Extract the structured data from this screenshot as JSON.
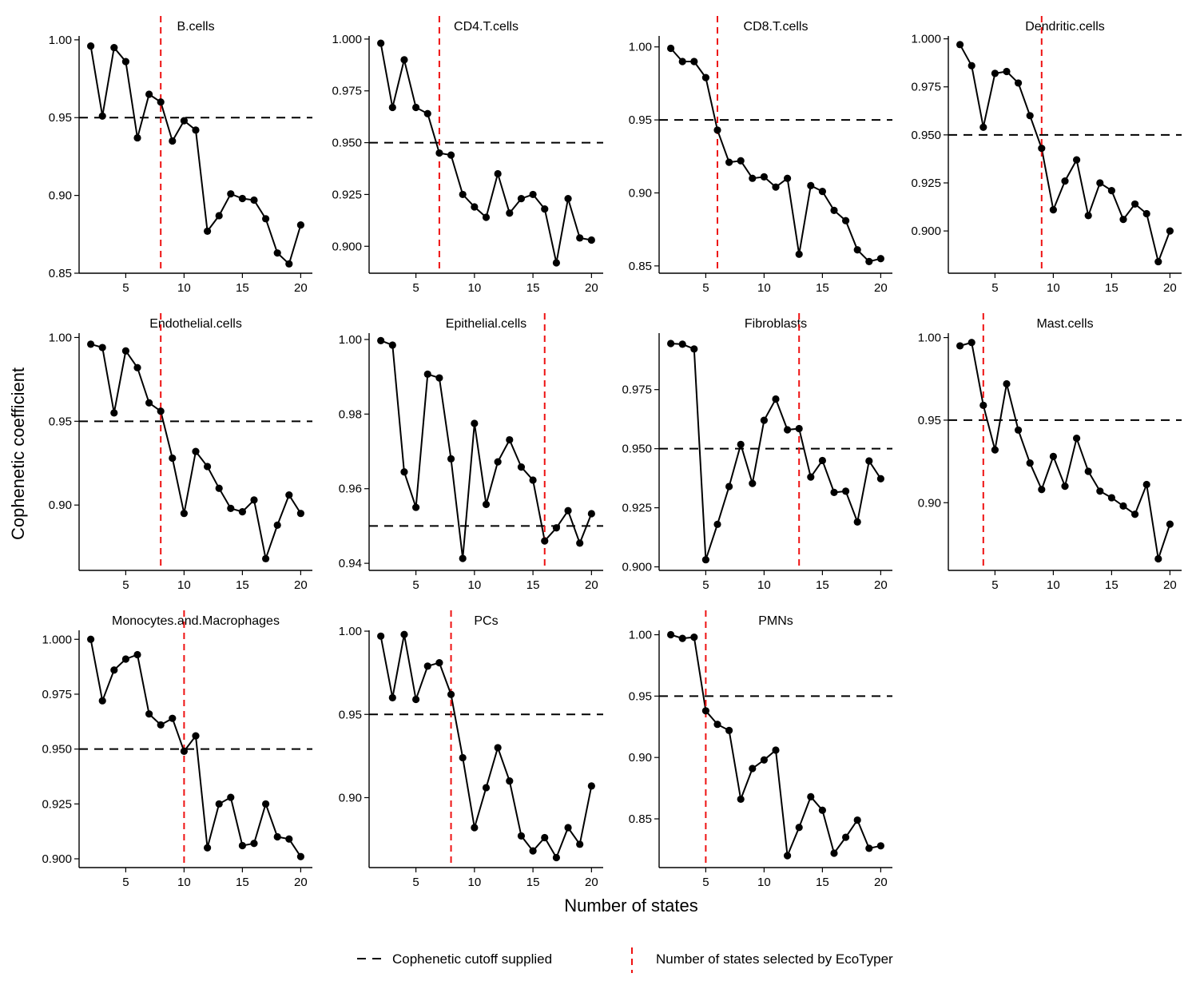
{
  "figure": {
    "ylabel": "Cophenetic coefficient",
    "xlabel": "Number of states",
    "legend": [
      {
        "label": "Cophenetic cutoff supplied",
        "style": "dashed-black-horizontal"
      },
      {
        "label": "Number of states selected by EcoTyper",
        "style": "dashed-red-vertical"
      }
    ],
    "colors": {
      "series": "#000000",
      "cutoff": "#000000",
      "selected": "#ee1111"
    }
  },
  "chart_data": [
    {
      "type": "line",
      "title": "B.cells",
      "x": [
        2,
        3,
        4,
        5,
        6,
        7,
        8,
        9,
        10,
        11,
        12,
        13,
        14,
        15,
        16,
        17,
        18,
        19,
        20
      ],
      "values": [
        0.996,
        0.951,
        0.995,
        0.986,
        0.937,
        0.965,
        0.96,
        0.935,
        0.948,
        0.942,
        0.877,
        0.887,
        0.901,
        0.898,
        0.897,
        0.885,
        0.863,
        0.856,
        0.881
      ],
      "xlim": [
        1,
        21
      ],
      "ylim": [
        0.85,
        1.0025
      ],
      "xticks": [
        5,
        10,
        15,
        20
      ],
      "yticks": [
        0.85,
        0.9,
        0.95,
        1.0
      ],
      "ytick_labels": [
        "0.85",
        "0.90",
        "0.95",
        "1.00"
      ],
      "cutoff": 0.95,
      "selected_states": 8
    },
    {
      "type": "line",
      "title": "CD4.T.cells",
      "x": [
        2,
        3,
        4,
        5,
        6,
        7,
        8,
        9,
        10,
        11,
        12,
        13,
        14,
        15,
        16,
        17,
        18,
        19,
        20
      ],
      "values": [
        0.998,
        0.967,
        0.99,
        0.967,
        0.964,
        0.945,
        0.944,
        0.925,
        0.919,
        0.914,
        0.935,
        0.916,
        0.923,
        0.925,
        0.918,
        0.892,
        0.923,
        0.904,
        0.903
      ],
      "xlim": [
        1,
        21
      ],
      "ylim": [
        0.887,
        1.0015
      ],
      "xticks": [
        5,
        10,
        15,
        20
      ],
      "yticks": [
        0.9,
        0.925,
        0.95,
        0.975,
        1.0
      ],
      "ytick_labels": [
        "0.900",
        "0.925",
        "0.950",
        "0.975",
        "1.000"
      ],
      "cutoff": 0.95,
      "selected_states": 7
    },
    {
      "type": "line",
      "title": "CD8.T.cells",
      "x": [
        2,
        3,
        4,
        5,
        6,
        7,
        8,
        9,
        10,
        11,
        12,
        13,
        14,
        15,
        16,
        17,
        18,
        19,
        20
      ],
      "values": [
        0.999,
        0.99,
        0.99,
        0.979,
        0.943,
        0.921,
        0.922,
        0.91,
        0.911,
        0.904,
        0.91,
        0.858,
        0.905,
        0.901,
        0.888,
        0.881,
        0.861,
        0.853,
        0.855
      ],
      "xlim": [
        1,
        21
      ],
      "ylim": [
        0.845,
        1.0075
      ],
      "xticks": [
        5,
        10,
        15,
        20
      ],
      "yticks": [
        0.85,
        0.9,
        0.95,
        1.0
      ],
      "ytick_labels": [
        "0.85",
        "0.90",
        "0.95",
        "1.00"
      ],
      "cutoff": 0.95,
      "selected_states": 6
    },
    {
      "type": "line",
      "title": "Dendritic.cells",
      "x": [
        2,
        3,
        4,
        5,
        6,
        7,
        8,
        9,
        10,
        11,
        12,
        13,
        14,
        15,
        16,
        17,
        18,
        19,
        20
      ],
      "values": [
        0.997,
        0.986,
        0.954,
        0.982,
        0.983,
        0.977,
        0.96,
        0.943,
        0.911,
        0.926,
        0.937,
        0.908,
        0.925,
        0.921,
        0.906,
        0.914,
        0.909,
        0.884,
        0.9
      ],
      "xlim": [
        1,
        21
      ],
      "ylim": [
        0.878,
        1.0015
      ],
      "xticks": [
        5,
        10,
        15,
        20
      ],
      "yticks": [
        0.9,
        0.925,
        0.95,
        0.975,
        1.0
      ],
      "ytick_labels": [
        "0.900",
        "0.925",
        "0.950",
        "0.975",
        "1.000"
      ],
      "cutoff": 0.95,
      "selected_states": 9
    },
    {
      "type": "line",
      "title": "Endothelial.cells",
      "x": [
        2,
        3,
        4,
        5,
        6,
        7,
        8,
        9,
        10,
        11,
        12,
        13,
        14,
        15,
        16,
        17,
        18,
        19,
        20
      ],
      "values": [
        0.996,
        0.994,
        0.955,
        0.992,
        0.982,
        0.961,
        0.956,
        0.928,
        0.895,
        0.932,
        0.923,
        0.91,
        0.898,
        0.896,
        0.903,
        0.868,
        0.888,
        0.906,
        0.895
      ],
      "xlim": [
        1,
        21
      ],
      "ylim": [
        0.861,
        1.0026
      ],
      "xticks": [
        5,
        10,
        15,
        20
      ],
      "yticks": [
        0.9,
        0.95,
        1.0
      ],
      "ytick_labels": [
        "0.90",
        "0.95",
        "1.00"
      ],
      "cutoff": 0.95,
      "selected_states": 8
    },
    {
      "type": "line",
      "title": "Epithelial.cells",
      "x": [
        2,
        3,
        4,
        5,
        6,
        7,
        8,
        9,
        10,
        11,
        12,
        13,
        14,
        15,
        16,
        17,
        18,
        19,
        20
      ],
      "values": [
        0.9997,
        0.9985,
        0.9645,
        0.955,
        0.9907,
        0.9897,
        0.968,
        0.9413,
        0.9775,
        0.9558,
        0.9672,
        0.9731,
        0.9658,
        0.9623,
        0.946,
        0.9495,
        0.9541,
        0.9454,
        0.9533
      ],
      "xlim": [
        1,
        21
      ],
      "ylim": [
        0.9381,
        1.0017
      ],
      "xticks": [
        5,
        10,
        15,
        20
      ],
      "yticks": [
        0.94,
        0.96,
        0.98,
        1.0
      ],
      "ytick_labels": [
        "0.94",
        "0.96",
        "0.98",
        "1.00"
      ],
      "cutoff": 0.95,
      "selected_states": 16
    },
    {
      "type": "line",
      "title": "Fibroblasts",
      "x": [
        2,
        3,
        4,
        5,
        6,
        7,
        8,
        9,
        10,
        11,
        12,
        13,
        14,
        15,
        16,
        17,
        18,
        19,
        20
      ],
      "values": [
        0.9945,
        0.9942,
        0.9922,
        0.903,
        0.918,
        0.934,
        0.9518,
        0.9353,
        0.962,
        0.971,
        0.958,
        0.9585,
        0.938,
        0.945,
        0.9315,
        0.932,
        0.919,
        0.9448,
        0.9373
      ],
      "xlim": [
        1,
        21
      ],
      "ylim": [
        0.8985,
        0.9989
      ],
      "xticks": [
        5,
        10,
        15,
        20
      ],
      "yticks": [
        0.9,
        0.925,
        0.95,
        0.975
      ],
      "ytick_labels": [
        "0.900",
        "0.925",
        "0.950",
        "0.975"
      ],
      "cutoff": 0.95,
      "selected_states": 13
    },
    {
      "type": "line",
      "title": "Mast.cells",
      "x": [
        2,
        3,
        4,
        5,
        6,
        7,
        8,
        9,
        10,
        11,
        12,
        13,
        14,
        15,
        16,
        17,
        18,
        19,
        20
      ],
      "values": [
        0.995,
        0.997,
        0.959,
        0.932,
        0.972,
        0.944,
        0.924,
        0.908,
        0.928,
        0.91,
        0.939,
        0.919,
        0.907,
        0.903,
        0.898,
        0.893,
        0.911,
        0.866,
        0.887
      ],
      "xlim": [
        1,
        21
      ],
      "ylim": [
        0.859,
        1.0027
      ],
      "xticks": [
        5,
        10,
        15,
        20
      ],
      "yticks": [
        0.9,
        0.95,
        1.0
      ],
      "ytick_labels": [
        "0.90",
        "0.95",
        "1.00"
      ],
      "cutoff": 0.95,
      "selected_states": 4
    },
    {
      "type": "line",
      "title": "Monocytes.and.Macrophages",
      "x": [
        2,
        3,
        4,
        5,
        6,
        7,
        8,
        9,
        10,
        11,
        12,
        13,
        14,
        15,
        16,
        17,
        18,
        19,
        20
      ],
      "values": [
        1.0,
        0.972,
        0.986,
        0.991,
        0.993,
        0.966,
        0.961,
        0.964,
        0.949,
        0.956,
        0.905,
        0.925,
        0.928,
        0.906,
        0.907,
        0.925,
        0.91,
        0.909,
        0.901
      ],
      "xlim": [
        1,
        21
      ],
      "ylim": [
        0.896,
        1.0041
      ],
      "xticks": [
        5,
        10,
        15,
        20
      ],
      "yticks": [
        0.9,
        0.925,
        0.95,
        0.975,
        1.0
      ],
      "ytick_labels": [
        "0.900",
        "0.925",
        "0.950",
        "0.975",
        "1.000"
      ],
      "cutoff": 0.95,
      "selected_states": 10
    },
    {
      "type": "line",
      "title": "PCs",
      "x": [
        2,
        3,
        4,
        5,
        6,
        7,
        8,
        9,
        10,
        11,
        12,
        13,
        14,
        15,
        16,
        17,
        18,
        19,
        20
      ],
      "values": [
        0.997,
        0.96,
        0.998,
        0.959,
        0.979,
        0.981,
        0.962,
        0.924,
        0.882,
        0.906,
        0.93,
        0.91,
        0.877,
        0.868,
        0.876,
        0.864,
        0.882,
        0.872,
        0.907
      ],
      "xlim": [
        1,
        21
      ],
      "ylim": [
        0.858,
        1.0005
      ],
      "xticks": [
        5,
        10,
        15,
        20
      ],
      "yticks": [
        0.9,
        0.95,
        1.0
      ],
      "ytick_labels": [
        "0.90",
        "0.95",
        "1.00"
      ],
      "cutoff": 0.95,
      "selected_states": 8
    },
    {
      "type": "line",
      "title": "PMNs",
      "x": [
        2,
        3,
        4,
        5,
        6,
        7,
        8,
        9,
        10,
        11,
        12,
        13,
        14,
        15,
        16,
        17,
        18,
        19,
        20
      ],
      "values": [
        1.0,
        0.997,
        0.998,
        0.938,
        0.927,
        0.922,
        0.866,
        0.891,
        0.898,
        0.906,
        0.82,
        0.843,
        0.868,
        0.857,
        0.822,
        0.835,
        0.849,
        0.826,
        0.828
      ],
      "xlim": [
        1,
        21
      ],
      "ylim": [
        0.8103,
        1.0036
      ],
      "xticks": [
        5,
        10,
        15,
        20
      ],
      "yticks": [
        0.85,
        0.9,
        0.95,
        1.0
      ],
      "ytick_labels": [
        "0.85",
        "0.90",
        "0.95",
        "1.00"
      ],
      "cutoff": 0.95,
      "selected_states": 5
    }
  ]
}
